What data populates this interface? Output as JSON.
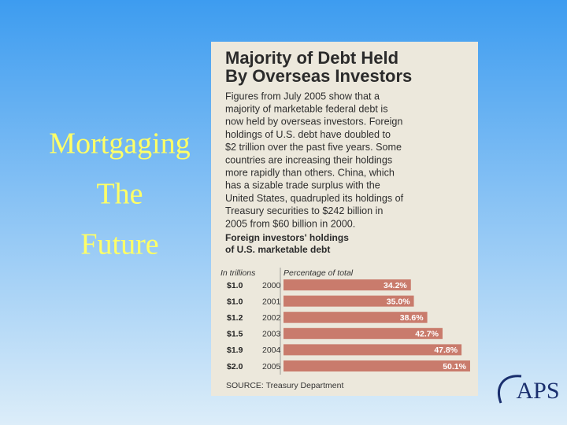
{
  "slide": {
    "title_lines": [
      "Mortgaging",
      "The",
      "Future"
    ],
    "logo": "APS"
  },
  "article": {
    "title_lines": [
      "Majority of Debt Held",
      "By Overseas Investors"
    ],
    "body_lines": [
      "Figures from July 2005 show that a",
      "majority of marketable federal debt is",
      "now held by overseas investors. Foreign",
      "holdings of U.S. debt have doubled to",
      "$2 trillion over the past five years. Some",
      "countries are increasing their holdings",
      "more rapidly than others. China, which",
      "has a sizable trade surplus with the",
      "United States, quadrupled its holdings of",
      "Treasury securities to $242 billion in",
      "2005 from $60 billion in 2000."
    ]
  },
  "chart_data": {
    "type": "bar",
    "title_lines": [
      "Foreign investors' holdings",
      "of U.S. marketable debt"
    ],
    "amount_header": "In trillions",
    "value_header": "Percentage of total",
    "categories": [
      "2000",
      "2001",
      "2002",
      "2003",
      "2004",
      "2005"
    ],
    "amount_labels": [
      "$1.0",
      "$1.0",
      "$1.2",
      "$1.5",
      "$1.9",
      "$2.0"
    ],
    "values": [
      34.2,
      35.0,
      38.6,
      42.7,
      47.8,
      50.1
    ],
    "value_labels": [
      "34.2%",
      "35.0%",
      "38.6%",
      "42.7%",
      "47.8%",
      "50.1%"
    ],
    "color": "#c97b6c",
    "source": "SOURCE: Treasury Department"
  }
}
